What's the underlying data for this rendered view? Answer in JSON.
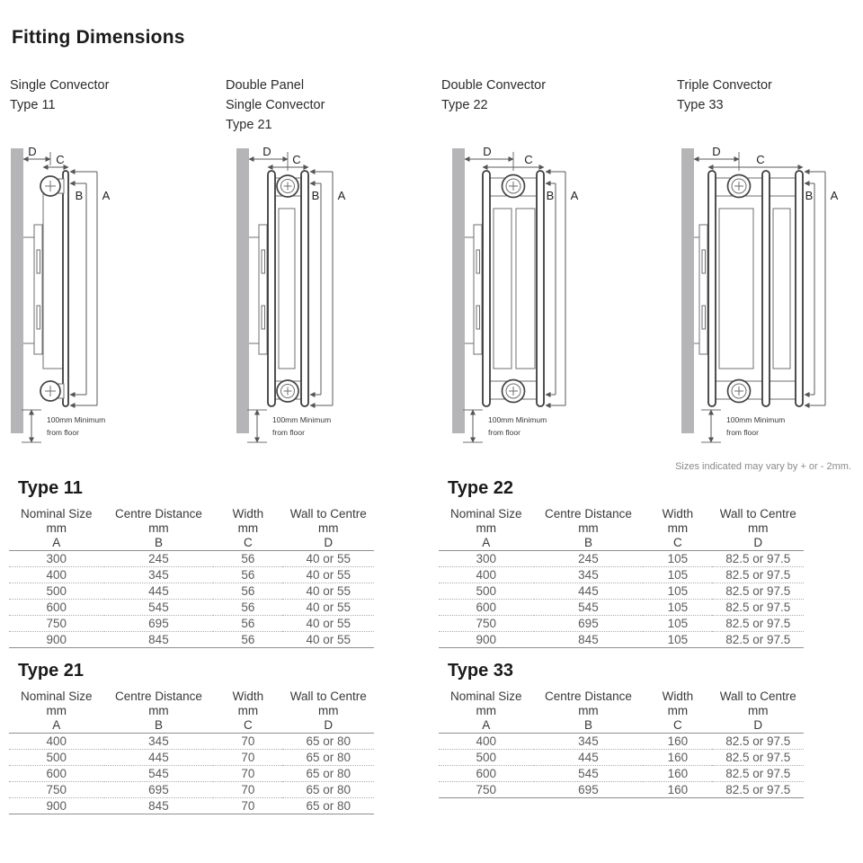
{
  "page": {
    "title": "Fitting Dimensions",
    "variance_note": "Sizes indicated may vary by + or - 2mm."
  },
  "product_headers": [
    {
      "lines": [
        "Single Convector",
        "Type 11"
      ]
    },
    {
      "lines": [
        "Double Panel",
        "Single Convector",
        "Type 21"
      ]
    },
    {
      "lines": [
        "Double Convector",
        "Type 22"
      ]
    },
    {
      "lines": [
        "Triple Convector",
        "Type 33"
      ]
    }
  ],
  "diagram": {
    "labels": {
      "a": "A",
      "b": "B",
      "c": "C",
      "d": "D"
    },
    "floor_note": [
      "100mm Minimum",
      "from floor"
    ]
  },
  "tables": [
    {
      "title": "Type 11",
      "columns": [
        {
          "label": "Nominal Size",
          "unit": "mm",
          "letter": "A"
        },
        {
          "label": "Centre Distance",
          "unit": "mm",
          "letter": "B"
        },
        {
          "label": "Width",
          "unit": "mm",
          "letter": "C"
        },
        {
          "label": "Wall to Centre",
          "unit": "mm",
          "letter": "D"
        }
      ],
      "rows": [
        [
          "300",
          "245",
          "56",
          "40 or 55"
        ],
        [
          "400",
          "345",
          "56",
          "40 or 55"
        ],
        [
          "500",
          "445",
          "56",
          "40 or 55"
        ],
        [
          "600",
          "545",
          "56",
          "40 or 55"
        ],
        [
          "750",
          "695",
          "56",
          "40 or 55"
        ],
        [
          "900",
          "845",
          "56",
          "40 or 55"
        ]
      ]
    },
    {
      "title": "Type 22",
      "columns": [
        {
          "label": "Nominal Size",
          "unit": "mm",
          "letter": "A"
        },
        {
          "label": "Centre Distance",
          "unit": "mm",
          "letter": "B"
        },
        {
          "label": "Width",
          "unit": "mm",
          "letter": "C"
        },
        {
          "label": "Wall to Centre",
          "unit": "mm",
          "letter": "D"
        }
      ],
      "rows": [
        [
          "300",
          "245",
          "105",
          "82.5 or 97.5"
        ],
        [
          "400",
          "345",
          "105",
          "82.5 or 97.5"
        ],
        [
          "500",
          "445",
          "105",
          "82.5 or 97.5"
        ],
        [
          "600",
          "545",
          "105",
          "82.5 or 97.5"
        ],
        [
          "750",
          "695",
          "105",
          "82.5 or 97.5"
        ],
        [
          "900",
          "845",
          "105",
          "82.5 or 97.5"
        ]
      ]
    },
    {
      "title": "Type 21",
      "columns": [
        {
          "label": "Nominal Size",
          "unit": "mm",
          "letter": "A"
        },
        {
          "label": "Centre Distance",
          "unit": "mm",
          "letter": "B"
        },
        {
          "label": "Width",
          "unit": "mm",
          "letter": "C"
        },
        {
          "label": "Wall to Centre",
          "unit": "mm",
          "letter": "D"
        }
      ],
      "rows": [
        [
          "400",
          "345",
          "70",
          "65 or 80"
        ],
        [
          "500",
          "445",
          "70",
          "65 or 80"
        ],
        [
          "600",
          "545",
          "70",
          "65 or 80"
        ],
        [
          "750",
          "695",
          "70",
          "65 or 80"
        ],
        [
          "900",
          "845",
          "70",
          "65 or 80"
        ]
      ]
    },
    {
      "title": "Type 33",
      "columns": [
        {
          "label": "Nominal Size",
          "unit": "mm",
          "letter": "A"
        },
        {
          "label": "Centre Distance",
          "unit": "mm",
          "letter": "B"
        },
        {
          "label": "Width",
          "unit": "mm",
          "letter": "C"
        },
        {
          "label": "Wall to Centre",
          "unit": "mm",
          "letter": "D"
        }
      ],
      "rows": [
        [
          "400",
          "345",
          "160",
          "82.5 or 97.5"
        ],
        [
          "500",
          "445",
          "160",
          "82.5 or 97.5"
        ],
        [
          "600",
          "545",
          "160",
          "82.5 or 97.5"
        ],
        [
          "750",
          "695",
          "160",
          "82.5 or 97.5"
        ]
      ]
    }
  ]
}
